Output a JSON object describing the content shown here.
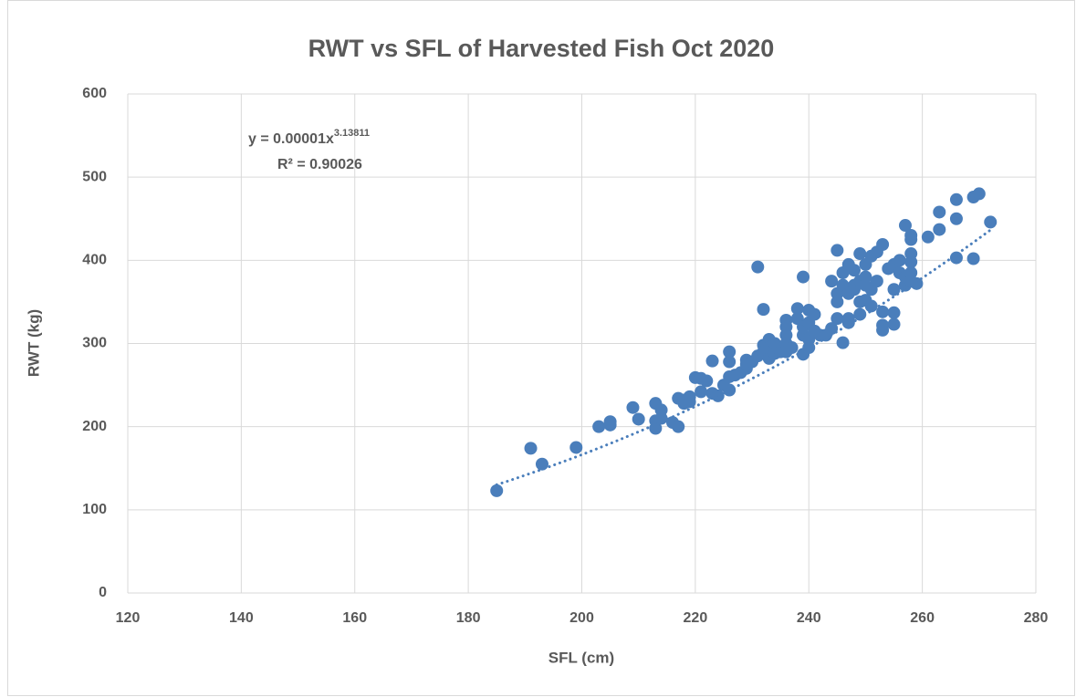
{
  "chart_data": {
    "type": "scatter",
    "title": "RWT vs SFL of Harvested Fish Oct 2020",
    "x_label": "SFL (cm)",
    "y_label": "RWT (kg)",
    "xlim": [
      120,
      280
    ],
    "xticks": [
      120,
      140,
      160,
      180,
      200,
      220,
      240,
      260,
      280
    ],
    "ylim": [
      0,
      600
    ],
    "yticks": [
      0,
      100,
      200,
      300,
      400,
      500,
      600
    ],
    "grid": true,
    "color": "#4a7ebb",
    "trendline": {
      "equation": "y = 0.00001x",
      "exponent": "3.13811",
      "r_squared": "R² = 0.90026"
    },
    "series": [
      {
        "x": [
          185,
          191,
          193,
          199,
          203,
          205,
          205,
          209,
          210,
          213,
          213,
          213,
          214,
          214,
          216,
          217,
          217,
          218,
          218,
          219,
          219,
          220,
          221,
          221,
          222,
          223,
          223,
          224,
          225,
          226,
          226,
          226,
          226,
          227,
          228,
          229,
          229,
          229,
          230,
          231,
          231,
          232,
          232,
          232,
          233,
          233,
          233,
          234,
          234,
          235,
          236,
          236,
          236,
          236,
          236,
          237,
          238,
          238,
          239,
          239,
          239,
          239,
          240,
          240,
          240,
          240,
          241,
          241,
          242,
          243,
          244,
          244,
          245,
          245,
          245,
          245,
          246,
          246,
          246,
          247,
          247,
          247,
          247,
          248,
          248,
          248,
          249,
          249,
          249,
          249,
          250,
          250,
          250,
          250,
          251,
          251,
          251,
          252,
          252,
          253,
          253,
          253,
          253,
          254,
          255,
          255,
          255,
          255,
          256,
          256,
          257,
          257,
          257,
          258,
          258,
          258,
          258,
          258,
          258,
          259,
          261,
          263,
          263,
          266,
          266,
          266,
          269,
          269,
          270,
          272
        ],
        "values": [
          123,
          174,
          155,
          175,
          200,
          202,
          206,
          223,
          209,
          228,
          198,
          207,
          220,
          210,
          205,
          200,
          234,
          228,
          232,
          236,
          230,
          259,
          258,
          242,
          255,
          240,
          279,
          237,
          250,
          290,
          278,
          260,
          244,
          262,
          265,
          280,
          270,
          275,
          278,
          392,
          285,
          298,
          341,
          290,
          305,
          282,
          295,
          288,
          300,
          290,
          328,
          320,
          310,
          300,
          290,
          295,
          342,
          330,
          380,
          287,
          310,
          320,
          340,
          325,
          295,
          305,
          335,
          315,
          310,
          310,
          375,
          318,
          412,
          360,
          350,
          330,
          385,
          301,
          370,
          395,
          360,
          325,
          330,
          388,
          370,
          365,
          408,
          375,
          350,
          335,
          395,
          380,
          370,
          352,
          405,
          365,
          345,
          410,
          375,
          419,
          338,
          322,
          316,
          390,
          395,
          365,
          337,
          323,
          400,
          385,
          442,
          380,
          370,
          430,
          425,
          408,
          398,
          385,
          375,
          372,
          428,
          458,
          437,
          473,
          450,
          403,
          476,
          402,
          480,
          446
        ]
      }
    ]
  }
}
